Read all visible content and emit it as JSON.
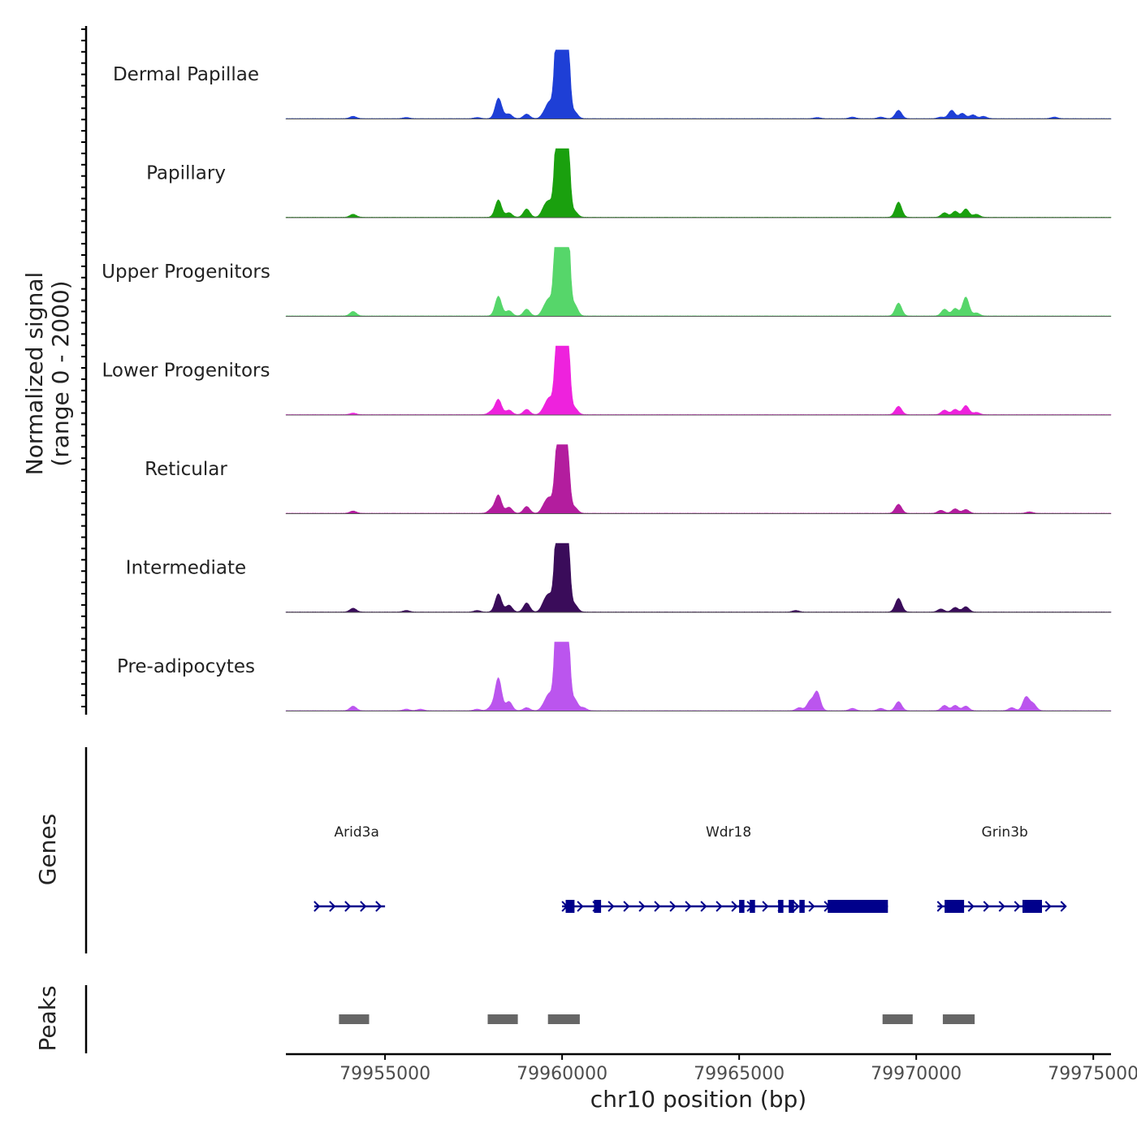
{
  "chart_data": {
    "type": "area",
    "title": "",
    "xlabel": "chr10 position (bp)",
    "ylabel": "Normalized signal",
    "ylabel_range": "(range 0 - 2000)",
    "y_range": [
      0,
      2000
    ],
    "x_range": [
      79952200,
      79975500
    ],
    "x_ticks": [
      79955000,
      79960000,
      79965000,
      79970000,
      79975000
    ],
    "x_tick_labels": [
      "79955000",
      "79960000",
      "79965000",
      "79970000",
      "79975000"
    ],
    "colors": {
      "dermal": "#1e3fd6",
      "papillary": "#1aa00e",
      "upper": "#56d66a",
      "lower": "#ee22dd",
      "reticular": "#b31d9e",
      "intermediate": "#3a0c5a",
      "preadipo": "#bb55ee",
      "genes": "#00008b",
      "peaks": "#666666"
    },
    "tracks": [
      {
        "name": "Dermal Papillae",
        "color_key": "dermal",
        "peaks": [
          [
            79954100,
            30
          ],
          [
            79955600,
            15
          ],
          [
            79957600,
            15
          ],
          [
            79958300,
            20
          ],
          [
            79958200,
            260
          ],
          [
            79958500,
            60
          ],
          [
            79959000,
            60
          ],
          [
            79959500,
            70
          ],
          [
            79959650,
            200
          ],
          [
            79959850,
            1050
          ],
          [
            79959950,
            1080
          ],
          [
            79960050,
            800
          ],
          [
            79960150,
            1050
          ],
          [
            79960350,
            90
          ],
          [
            79967200,
            15
          ],
          [
            79968200,
            20
          ],
          [
            79969000,
            20
          ],
          [
            79969500,
            110
          ],
          [
            79970700,
            20
          ],
          [
            79971000,
            110
          ],
          [
            79971300,
            70
          ],
          [
            79971600,
            50
          ],
          [
            79971900,
            30
          ],
          [
            79973900,
            20
          ]
        ]
      },
      {
        "name": "Papillary",
        "color_key": "papillary",
        "peaks": [
          [
            79954100,
            40
          ],
          [
            79958200,
            230
          ],
          [
            79958500,
            60
          ],
          [
            79959000,
            110
          ],
          [
            79959500,
            120
          ],
          [
            79959650,
            180
          ],
          [
            79959850,
            1000
          ],
          [
            79959950,
            1120
          ],
          [
            79960050,
            800
          ],
          [
            79960150,
            1050
          ],
          [
            79960350,
            80
          ],
          [
            79969500,
            200
          ],
          [
            79970800,
            60
          ],
          [
            79971100,
            80
          ],
          [
            79971400,
            110
          ],
          [
            79971700,
            40
          ]
        ]
      },
      {
        "name": "Upper Progenitors",
        "color_key": "upper",
        "peaks": [
          [
            79954100,
            60
          ],
          [
            79958200,
            260
          ],
          [
            79958500,
            70
          ],
          [
            79959000,
            90
          ],
          [
            79959500,
            100
          ],
          [
            79959650,
            200
          ],
          [
            79959850,
            1350
          ],
          [
            79959950,
            1420
          ],
          [
            79960050,
            1150
          ],
          [
            79960150,
            1250
          ],
          [
            79960350,
            150
          ],
          [
            79969500,
            170
          ],
          [
            79970800,
            90
          ],
          [
            79971100,
            100
          ],
          [
            79971400,
            250
          ],
          [
            79971700,
            40
          ]
        ]
      },
      {
        "name": "Lower Progenitors",
        "color_key": "lower",
        "peaks": [
          [
            79954100,
            20
          ],
          [
            79958000,
            40
          ],
          [
            79958200,
            200
          ],
          [
            79958500,
            60
          ],
          [
            79959000,
            70
          ],
          [
            79959500,
            80
          ],
          [
            79959650,
            200
          ],
          [
            79959850,
            800
          ],
          [
            79959950,
            1000
          ],
          [
            79960050,
            750
          ],
          [
            79960150,
            1050
          ],
          [
            79960350,
            90
          ],
          [
            79969500,
            110
          ],
          [
            79970800,
            60
          ],
          [
            79971100,
            70
          ],
          [
            79971400,
            120
          ],
          [
            79971700,
            30
          ]
        ]
      },
      {
        "name": "Reticular",
        "color_key": "reticular",
        "peaks": [
          [
            79954100,
            30
          ],
          [
            79958000,
            50
          ],
          [
            79958200,
            240
          ],
          [
            79958500,
            80
          ],
          [
            79959000,
            90
          ],
          [
            79959500,
            100
          ],
          [
            79959650,
            180
          ],
          [
            79959850,
            700
          ],
          [
            79959950,
            760
          ],
          [
            79960050,
            640
          ],
          [
            79960150,
            720
          ],
          [
            79960350,
            80
          ],
          [
            79969500,
            120
          ],
          [
            79970700,
            40
          ],
          [
            79971100,
            60
          ],
          [
            79971400,
            50
          ],
          [
            79973200,
            20
          ]
        ]
      },
      {
        "name": "Intermediate",
        "color_key": "intermediate",
        "peaks": [
          [
            79954100,
            50
          ],
          [
            79955600,
            20
          ],
          [
            79957600,
            20
          ],
          [
            79958200,
            240
          ],
          [
            79958500,
            90
          ],
          [
            79959000,
            120
          ],
          [
            79959500,
            120
          ],
          [
            79959650,
            200
          ],
          [
            79959850,
            1000
          ],
          [
            79959950,
            1080
          ],
          [
            79960050,
            850
          ],
          [
            79960150,
            1000
          ],
          [
            79960350,
            100
          ],
          [
            79966600,
            20
          ],
          [
            79969500,
            180
          ],
          [
            79970700,
            40
          ],
          [
            79971100,
            60
          ],
          [
            79971400,
            70
          ]
        ]
      },
      {
        "name": "Pre-adipocytes",
        "color_key": "preadipo",
        "peaks": [
          [
            79954100,
            60
          ],
          [
            79955600,
            20
          ],
          [
            79956000,
            20
          ],
          [
            79957600,
            20
          ],
          [
            79958000,
            50
          ],
          [
            79958200,
            430
          ],
          [
            79958500,
            120
          ],
          [
            79959000,
            40
          ],
          [
            79959500,
            80
          ],
          [
            79959650,
            200
          ],
          [
            79959850,
            1100
          ],
          [
            79959950,
            1250
          ],
          [
            79960050,
            850
          ],
          [
            79960150,
            1100
          ],
          [
            79960350,
            150
          ],
          [
            79960600,
            40
          ],
          [
            79966700,
            40
          ],
          [
            79967000,
            120
          ],
          [
            79967200,
            250
          ],
          [
            79968200,
            30
          ],
          [
            79969000,
            30
          ],
          [
            79969500,
            120
          ],
          [
            79970800,
            70
          ],
          [
            79971100,
            70
          ],
          [
            79971400,
            60
          ],
          [
            79972700,
            40
          ],
          [
            79973100,
            180
          ],
          [
            79973300,
            90
          ]
        ]
      }
    ],
    "genes_track": {
      "label": "Genes",
      "genes": [
        {
          "name": "Arid3a",
          "start": 79953000,
          "end": 79955000,
          "label_pos": 79954200,
          "exons": []
        },
        {
          "name": "Wdr18",
          "start": 79960000,
          "end": 79969200,
          "label_pos": 79964700,
          "exons": [
            [
              79960100,
              79960350
            ],
            [
              79960900,
              79961100
            ],
            [
              79965000,
              79965150
            ],
            [
              79965300,
              79965450
            ],
            [
              79966100,
              79966250
            ],
            [
              79966400,
              79966550
            ],
            [
              79966700,
              79966850
            ],
            [
              79967500,
              79969200
            ]
          ]
        },
        {
          "name": "Grin3b",
          "start": 79970600,
          "end": 79974200,
          "label_pos": 79972500,
          "exons": [
            [
              79970800,
              79971350
            ],
            [
              79973000,
              79973550
            ]
          ]
        }
      ]
    },
    "peaks_track": {
      "label": "Peaks",
      "regions": [
        [
          79953700,
          79954550
        ],
        [
          79957900,
          79958750
        ],
        [
          79959600,
          79960500
        ],
        [
          79969050,
          79969900
        ],
        [
          79970750,
          79971650
        ]
      ]
    }
  }
}
